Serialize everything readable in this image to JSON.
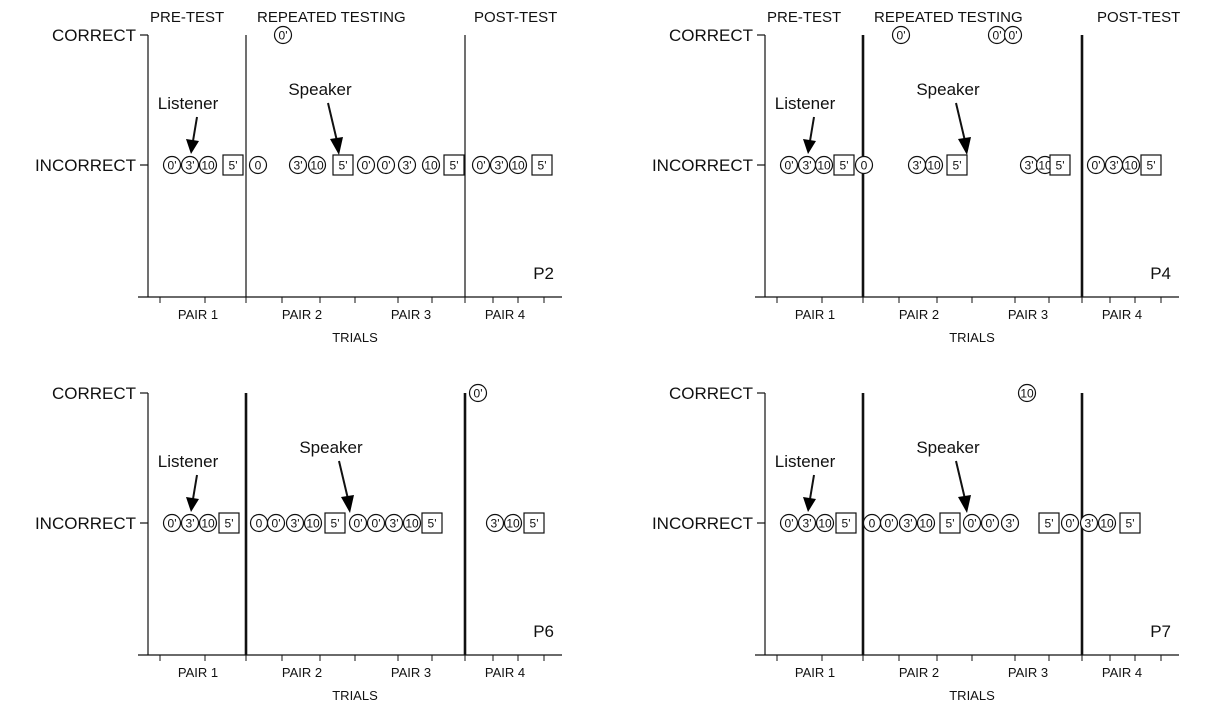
{
  "figure": {
    "phase_labels": [
      "PRE-TEST",
      "REPEATED TESTING",
      "POST-TEST"
    ],
    "y_categories": [
      "CORRECT",
      "INCORRECT"
    ],
    "x_label": "TRIALS",
    "pair_labels": [
      "PAIR 1",
      "PAIR 2",
      "PAIR 3",
      "PAIR 4"
    ],
    "arrow_labels": {
      "listener": "Listener",
      "speaker": "Speaker"
    },
    "legend_note": ""
  },
  "chart_data": [
    {
      "type": "scatter",
      "participant": "P2",
      "y_categories": [
        "INCORRECT",
        "CORRECT"
      ],
      "points": [
        {
          "trial": 1,
          "label": "0'",
          "shape": "circle",
          "outcome": "INCORRECT"
        },
        {
          "trial": 2,
          "label": "3'",
          "shape": "circle",
          "outcome": "INCORRECT"
        },
        {
          "trial": 3,
          "label": "10",
          "shape": "circle",
          "outcome": "INCORRECT"
        },
        {
          "trial": 4,
          "label": "5'",
          "shape": "square",
          "outcome": "INCORRECT"
        },
        {
          "trial": 5,
          "label": "0",
          "shape": "circle",
          "outcome": "INCORRECT"
        },
        {
          "trial": 6,
          "label": "0'",
          "shape": "circle",
          "outcome": "CORRECT"
        },
        {
          "trial": 7,
          "label": "3'",
          "shape": "circle",
          "outcome": "INCORRECT"
        },
        {
          "trial": 8,
          "label": "10",
          "shape": "circle",
          "outcome": "INCORRECT"
        },
        {
          "trial": 9,
          "label": "5'",
          "shape": "square",
          "outcome": "INCORRECT"
        },
        {
          "trial": 10,
          "label": "0'",
          "shape": "circle",
          "outcome": "INCORRECT"
        },
        {
          "trial": 11,
          "label": "0'",
          "shape": "circle",
          "outcome": "INCORRECT"
        },
        {
          "trial": 12,
          "label": "3'",
          "shape": "circle",
          "outcome": "INCORRECT"
        },
        {
          "trial": 13,
          "label": "10",
          "shape": "circle",
          "outcome": "INCORRECT"
        },
        {
          "trial": 14,
          "label": "5'",
          "shape": "square",
          "outcome": "INCORRECT"
        },
        {
          "trial": 15,
          "label": "0'",
          "shape": "circle",
          "outcome": "INCORRECT"
        },
        {
          "trial": 16,
          "label": "3'",
          "shape": "circle",
          "outcome": "INCORRECT"
        },
        {
          "trial": 17,
          "label": "10",
          "shape": "circle",
          "outcome": "INCORRECT"
        },
        {
          "trial": 18,
          "label": "5'",
          "shape": "square",
          "outcome": "INCORRECT"
        }
      ]
    },
    {
      "type": "scatter",
      "participant": "P4",
      "y_categories": [
        "INCORRECT",
        "CORRECT"
      ],
      "points": [
        {
          "trial": 1,
          "label": "0'",
          "shape": "circle",
          "outcome": "INCORRECT"
        },
        {
          "trial": 2,
          "label": "3'",
          "shape": "circle",
          "outcome": "INCORRECT"
        },
        {
          "trial": 3,
          "label": "10",
          "shape": "circle",
          "outcome": "INCORRECT"
        },
        {
          "trial": 4,
          "label": "5'",
          "shape": "square",
          "outcome": "INCORRECT"
        },
        {
          "trial": 5,
          "label": "0",
          "shape": "circle",
          "outcome": "INCORRECT"
        },
        {
          "trial": 6,
          "label": "0'",
          "shape": "circle",
          "outcome": "CORRECT"
        },
        {
          "trial": 7,
          "label": "3'",
          "shape": "circle",
          "outcome": "INCORRECT"
        },
        {
          "trial": 8,
          "label": "10",
          "shape": "circle",
          "outcome": "INCORRECT"
        },
        {
          "trial": 9,
          "label": "5'",
          "shape": "square",
          "outcome": "INCORRECT"
        },
        {
          "trial": 10,
          "label": "0'",
          "shape": "circle",
          "outcome": "CORRECT"
        },
        {
          "trial": 11,
          "label": "0'",
          "shape": "circle",
          "outcome": "CORRECT"
        },
        {
          "trial": 12,
          "label": "3'",
          "shape": "circle",
          "outcome": "INCORRECT"
        },
        {
          "trial": 13,
          "label": "10",
          "shape": "circle",
          "outcome": "INCORRECT"
        },
        {
          "trial": 14,
          "label": "5'",
          "shape": "square",
          "outcome": "INCORRECT"
        },
        {
          "trial": 15,
          "label": "0'",
          "shape": "circle",
          "outcome": "INCORRECT"
        },
        {
          "trial": 16,
          "label": "3'",
          "shape": "circle",
          "outcome": "INCORRECT"
        },
        {
          "trial": 17,
          "label": "10",
          "shape": "circle",
          "outcome": "INCORRECT"
        },
        {
          "trial": 18,
          "label": "5'",
          "shape": "square",
          "outcome": "INCORRECT"
        }
      ]
    },
    {
      "type": "scatter",
      "participant": "P6",
      "y_categories": [
        "INCORRECT",
        "CORRECT"
      ],
      "points": [
        {
          "trial": 1,
          "label": "0'",
          "shape": "circle",
          "outcome": "INCORRECT"
        },
        {
          "trial": 2,
          "label": "3'",
          "shape": "circle",
          "outcome": "INCORRECT"
        },
        {
          "trial": 3,
          "label": "10",
          "shape": "circle",
          "outcome": "INCORRECT"
        },
        {
          "trial": 4,
          "label": "5'",
          "shape": "square",
          "outcome": "INCORRECT"
        },
        {
          "trial": 5,
          "label": "0",
          "shape": "circle",
          "outcome": "INCORRECT"
        },
        {
          "trial": 6,
          "label": "0'",
          "shape": "circle",
          "outcome": "INCORRECT"
        },
        {
          "trial": 7,
          "label": "3'",
          "shape": "circle",
          "outcome": "INCORRECT"
        },
        {
          "trial": 8,
          "label": "10",
          "shape": "circle",
          "outcome": "INCORRECT"
        },
        {
          "trial": 9,
          "label": "5'",
          "shape": "square",
          "outcome": "INCORRECT"
        },
        {
          "trial": 10,
          "label": "0'",
          "shape": "circle",
          "outcome": "INCORRECT"
        },
        {
          "trial": 11,
          "label": "0'",
          "shape": "circle",
          "outcome": "INCORRECT"
        },
        {
          "trial": 12,
          "label": "3'",
          "shape": "circle",
          "outcome": "INCORRECT"
        },
        {
          "trial": 13,
          "label": "10",
          "shape": "circle",
          "outcome": "INCORRECT"
        },
        {
          "trial": 14,
          "label": "5'",
          "shape": "square",
          "outcome": "INCORRECT"
        },
        {
          "trial": 15,
          "label": "0'",
          "shape": "circle",
          "outcome": "CORRECT"
        },
        {
          "trial": 16,
          "label": "3'",
          "shape": "circle",
          "outcome": "INCORRECT"
        },
        {
          "trial": 17,
          "label": "10",
          "shape": "circle",
          "outcome": "INCORRECT"
        },
        {
          "trial": 18,
          "label": "5'",
          "shape": "square",
          "outcome": "INCORRECT"
        }
      ]
    },
    {
      "type": "scatter",
      "participant": "P7",
      "y_categories": [
        "INCORRECT",
        "CORRECT"
      ],
      "points": [
        {
          "trial": 1,
          "label": "0'",
          "shape": "circle",
          "outcome": "INCORRECT"
        },
        {
          "trial": 2,
          "label": "3'",
          "shape": "circle",
          "outcome": "INCORRECT"
        },
        {
          "trial": 3,
          "label": "10",
          "shape": "circle",
          "outcome": "INCORRECT"
        },
        {
          "trial": 4,
          "label": "5'",
          "shape": "square",
          "outcome": "INCORRECT"
        },
        {
          "trial": 5,
          "label": "0",
          "shape": "circle",
          "outcome": "INCORRECT"
        },
        {
          "trial": 6,
          "label": "0'",
          "shape": "circle",
          "outcome": "INCORRECT"
        },
        {
          "trial": 7,
          "label": "3'",
          "shape": "circle",
          "outcome": "INCORRECT"
        },
        {
          "trial": 8,
          "label": "10",
          "shape": "circle",
          "outcome": "INCORRECT"
        },
        {
          "trial": 9,
          "label": "5'",
          "shape": "square",
          "outcome": "INCORRECT"
        },
        {
          "trial": 10,
          "label": "0'",
          "shape": "circle",
          "outcome": "INCORRECT"
        },
        {
          "trial": 11,
          "label": "0'",
          "shape": "circle",
          "outcome": "INCORRECT"
        },
        {
          "trial": 12,
          "label": "3'",
          "shape": "circle",
          "outcome": "INCORRECT"
        },
        {
          "trial": 13,
          "label": "10",
          "shape": "circle",
          "outcome": "CORRECT"
        },
        {
          "trial": 14,
          "label": "5'",
          "shape": "square",
          "outcome": "INCORRECT"
        },
        {
          "trial": 15,
          "label": "0'",
          "shape": "circle",
          "outcome": "INCORRECT"
        },
        {
          "trial": 16,
          "label": "3'",
          "shape": "circle",
          "outcome": "INCORRECT"
        },
        {
          "trial": 17,
          "label": "10",
          "shape": "circle",
          "outcome": "INCORRECT"
        },
        {
          "trial": 18,
          "label": "5'",
          "shape": "square",
          "outcome": "INCORRECT"
        }
      ]
    }
  ]
}
